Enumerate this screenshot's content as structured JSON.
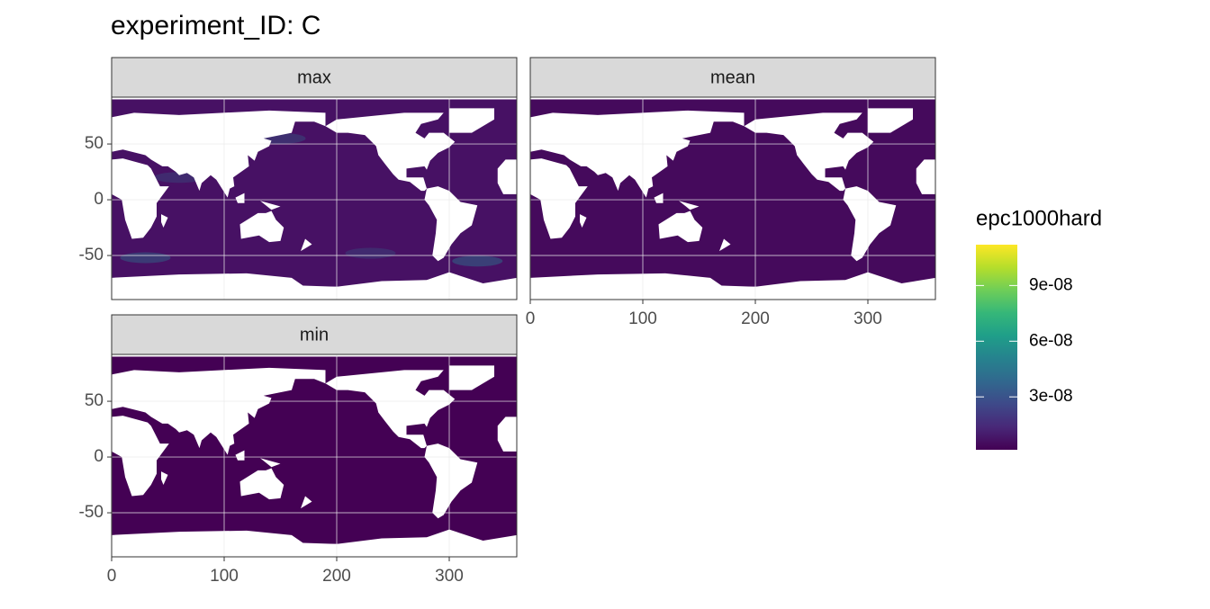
{
  "chart_data": {
    "type": "raster-map",
    "title": "experiment_ID: C",
    "panels": [
      {
        "name": "max",
        "color": "#471164"
      },
      {
        "name": "mean",
        "color": "#450a5c"
      },
      {
        "name": "min",
        "color": "#440154"
      }
    ],
    "xlim": [
      0,
      360
    ],
    "ylim": [
      -89.5,
      92
    ],
    "xticks": [
      0,
      100,
      200,
      300
    ],
    "yticks": [
      -50,
      0,
      50
    ],
    "grid": true,
    "legend": {
      "title": "epc1000hard",
      "limits": [
        1.5e-09,
        1.12e-07
      ],
      "ticks": [
        {
          "value": 3e-08,
          "label": "3e-08"
        },
        {
          "value": 6e-08,
          "label": "6e-08"
        },
        {
          "value": 9e-08,
          "label": "9e-08"
        }
      ],
      "colors": [
        "#440154",
        "#482878",
        "#3e4989",
        "#31688e",
        "#26828e",
        "#1f9e89",
        "#35b779",
        "#6ece58",
        "#b5de2b",
        "#fde725"
      ]
    }
  }
}
